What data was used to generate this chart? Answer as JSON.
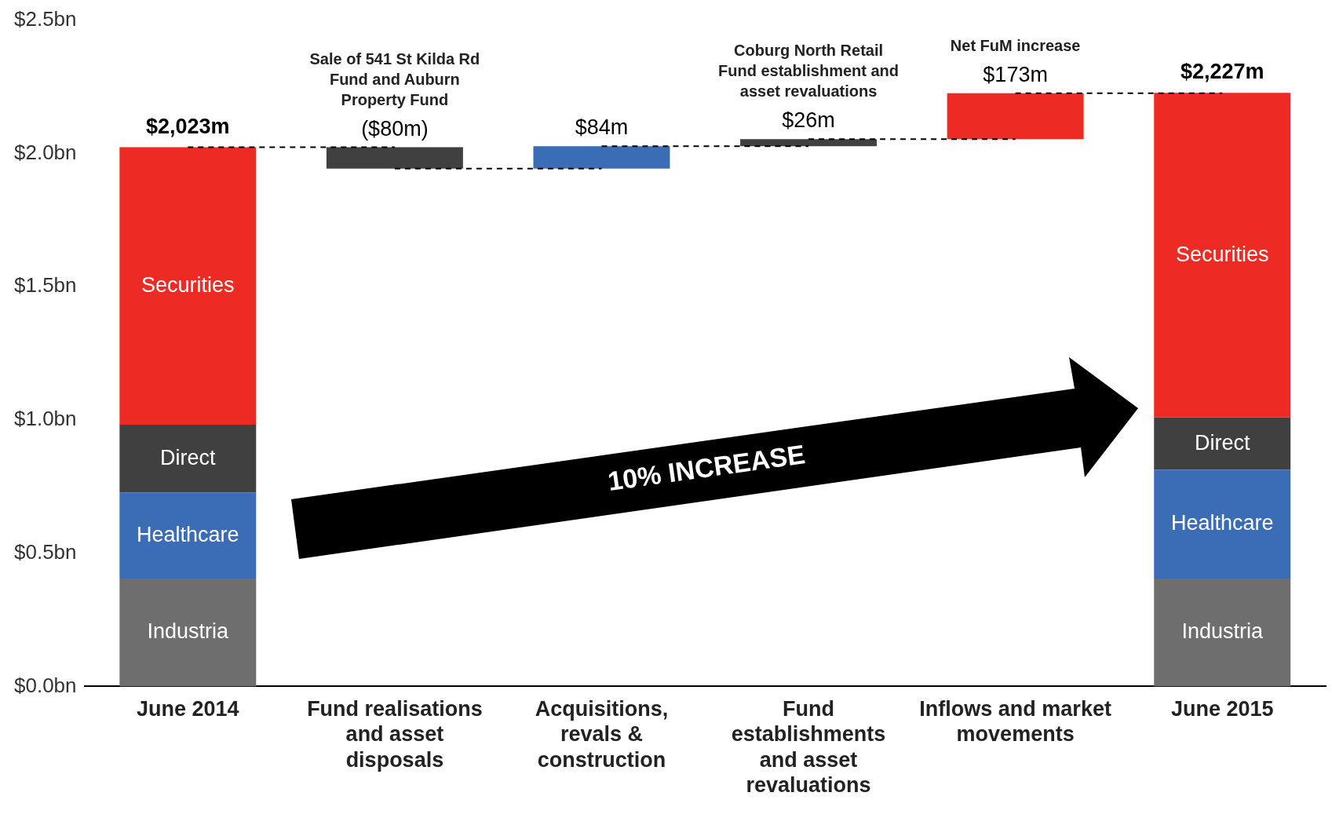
{
  "chart_data": {
    "type": "bar",
    "stacked": true,
    "categories": [
      "June 2014",
      "Fund realisations and asset disposals",
      "Acquisitions, revals & construction",
      "Fund establishments and asset revaluations",
      "Inflows and market movements",
      "June 2015"
    ],
    "series": [
      {
        "name": "Industria",
        "color": "#6e6e6e",
        "values": [
          0.405,
          null,
          null,
          null,
          null,
          0.405
        ]
      },
      {
        "name": "Healthcare",
        "color": "#3a6db5",
        "values": [
          0.323,
          null,
          null,
          null,
          null,
          0.408
        ]
      },
      {
        "name": "Direct",
        "color": "#404040",
        "values": [
          0.254,
          null,
          null,
          null,
          null,
          0.196
        ]
      },
      {
        "name": "Securities",
        "color": "#ee2a24",
        "values": [
          1.041,
          null,
          null,
          null,
          null,
          1.218
        ]
      },
      {
        "colors": [
          null,
          "#404040",
          "#3a6db5",
          "#404040",
          "#ee2a24",
          null
        ],
        "values": [
          null,
          -0.08,
          0.084,
          0.026,
          0.173,
          null
        ],
        "base": [
          null,
          2.023,
          1.943,
          2.027,
          2.053,
          null
        ]
      }
    ],
    "totals": [
      "$2,023m",
      null,
      null,
      null,
      null,
      "$2,227m"
    ],
    "ylim": [
      0,
      2.5
    ],
    "yticks": [
      {
        "value": 0,
        "label": "$0.0bn"
      },
      {
        "value": 0.5,
        "label": "$0.5bn"
      },
      {
        "value": 1,
        "label": "$1.0bn"
      },
      {
        "value": 1.5,
        "label": "$1.5bn"
      },
      {
        "value": 2,
        "label": "$2.0bn"
      },
      {
        "value": 2.5,
        "label": "$2.5bn"
      }
    ],
    "grid": false,
    "legend": false,
    "annotations": [
      {
        "text": "($80m)",
        "x": "Fund realisations and asset disposals",
        "y": 2.023
      },
      {
        "text": "Sale of 541 St Kilda Rd Fund and Auburn Property Fund",
        "x": "Fund realisations and asset disposals",
        "y": 2.023
      },
      {
        "text": "$84m",
        "x": "Acquisitions, revals & construction",
        "y": 2.027
      },
      {
        "text": "$26m",
        "x": "Fund establishments and asset revaluations",
        "y": 2.053
      },
      {
        "text": "Coburg North Retail Fund establishment and asset revaluations",
        "x": "Fund establishments and asset revaluations",
        "y": 2.053
      },
      {
        "text": "$173m",
        "x": "Inflows and market movements",
        "y": 2.226
      },
      {
        "text": "Net FuM increase",
        "x": "Inflows and market movements",
        "y": 2.226
      },
      "10% INCREASE"
    ]
  }
}
